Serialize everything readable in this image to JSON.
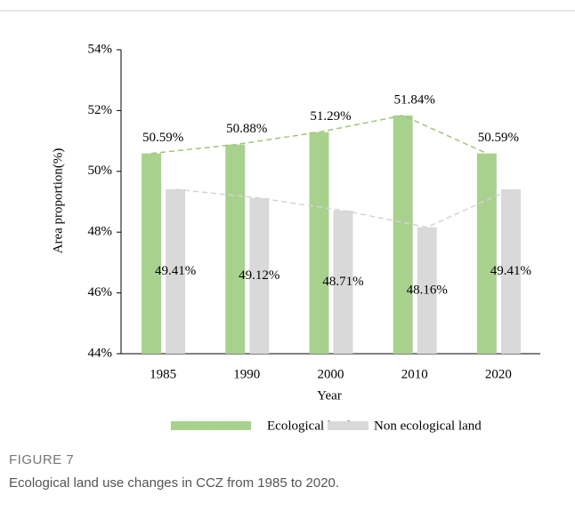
{
  "chart_data": {
    "type": "bar",
    "categories": [
      "1985",
      "1990",
      "2000",
      "2010",
      "2020"
    ],
    "series": [
      {
        "name": "Ecological land",
        "color": "#a9d18e",
        "values": [
          50.59,
          50.88,
          51.29,
          51.84,
          50.59
        ],
        "value_labels": [
          "50.59%",
          "50.88%",
          "51.29%",
          "51.84%",
          "50.59%"
        ]
      },
      {
        "name": "Non ecological land",
        "color": "#d9d9d9",
        "values": [
          49.41,
          49.12,
          48.71,
          48.16,
          49.41
        ],
        "value_labels": [
          "49.41%",
          "49.12%",
          "48.71%",
          "48.16%",
          "49.41%"
        ]
      }
    ],
    "xlabel": "Year",
    "ylabel": "Area proportion(%)",
    "ylim": [
      44,
      54
    ],
    "yticks": [
      {
        "value": 44,
        "label": "44%"
      },
      {
        "value": 46,
        "label": "46%"
      },
      {
        "value": 48,
        "label": "48%"
      },
      {
        "value": 50,
        "label": "50%"
      },
      {
        "value": 52,
        "label": "52%"
      },
      {
        "value": 54,
        "label": "54%"
      }
    ],
    "trend_lines": true,
    "legend": "bottom"
  },
  "figure": {
    "label": "FIGURE 7",
    "caption": "Ecological land use changes in CCZ from 1985 to 2020."
  }
}
